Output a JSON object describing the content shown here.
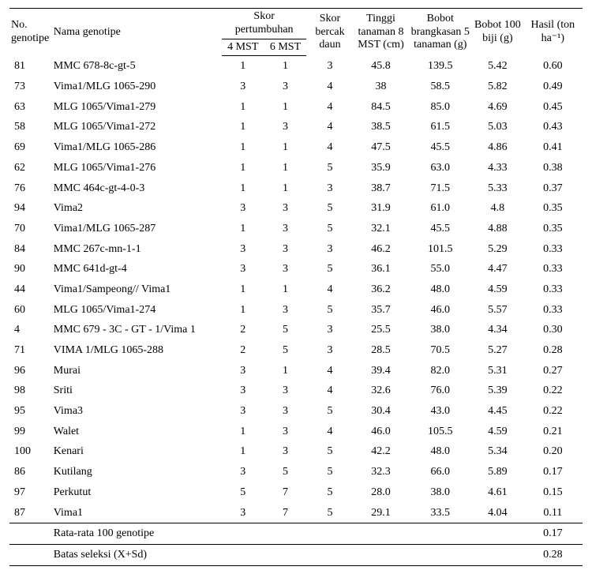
{
  "headers": {
    "no": "No. genotipe",
    "name": "Nama genotipe",
    "skor_group": "Skor pertumbuhan",
    "skor4": "4 MST",
    "skor6": "6 MST",
    "bercak": "Skor bercak daun",
    "tinggi": "Tinggi tanaman 8 MST (cm)",
    "brangkasan": "Bobot brangkasan 5 tanaman (g)",
    "biji": "Bobot 100 biji (g)",
    "hasil": "Hasil (ton ha⁻¹)"
  },
  "rows": [
    {
      "no": "81",
      "name": "MMC 678-8c-gt-5",
      "s4": "1",
      "s6": "1",
      "bd": "3",
      "tt": "45.8",
      "bb": "139.5",
      "b100": "5.42",
      "h": "0.60"
    },
    {
      "no": "73",
      "name": "Vima1/MLG 1065-290",
      "s4": "3",
      "s6": "3",
      "bd": "4",
      "tt": "38",
      "bb": "58.5",
      "b100": "5.82",
      "h": "0.49"
    },
    {
      "no": "63",
      "name": "MLG 1065/Vima1-279",
      "s4": "1",
      "s6": "1",
      "bd": "4",
      "tt": "84.5",
      "bb": "85.0",
      "b100": "4.69",
      "h": "0.45"
    },
    {
      "no": "58",
      "name": "MLG 1065/Vima1-272",
      "s4": "1",
      "s6": "3",
      "bd": "4",
      "tt": "38.5",
      "bb": "61.5",
      "b100": "5.03",
      "h": "0.43"
    },
    {
      "no": "69",
      "name": "Vima1/MLG 1065-286",
      "s4": "1",
      "s6": "1",
      "bd": "4",
      "tt": "47.5",
      "bb": "45.5",
      "b100": "4.86",
      "h": "0.41"
    },
    {
      "no": "62",
      "name": "MLG 1065/Vima1-276",
      "s4": "1",
      "s6": "1",
      "bd": "5",
      "tt": "35.9",
      "bb": "63.0",
      "b100": "4.33",
      "h": "0.38"
    },
    {
      "no": "76",
      "name": "MMC 464c-gt-4-0-3",
      "s4": "1",
      "s6": "1",
      "bd": "3",
      "tt": "38.7",
      "bb": "71.5",
      "b100": "5.33",
      "h": "0.37"
    },
    {
      "no": "94",
      "name": "Vima2",
      "s4": "3",
      "s6": "3",
      "bd": "5",
      "tt": "31.9",
      "bb": "61.0",
      "b100": "4.8",
      "h": "0.35"
    },
    {
      "no": "70",
      "name": "Vima1/MLG 1065-287",
      "s4": "1",
      "s6": "3",
      "bd": "5",
      "tt": "32.1",
      "bb": "45.5",
      "b100": "4.88",
      "h": "0.35"
    },
    {
      "no": "84",
      "name": "MMC 267c-mn-1-1",
      "s4": "3",
      "s6": "3",
      "bd": "3",
      "tt": "46.2",
      "bb": "101.5",
      "b100": "5.29",
      "h": "0.33"
    },
    {
      "no": "90",
      "name": "MMC 641d-gt-4",
      "s4": "3",
      "s6": "3",
      "bd": "5",
      "tt": "36.1",
      "bb": "55.0",
      "b100": "4.47",
      "h": "0.33"
    },
    {
      "no": "44",
      "name": "Vima1/Sampeong// Vima1",
      "s4": "1",
      "s6": "1",
      "bd": "4",
      "tt": "36.2",
      "bb": "48.0",
      "b100": "4.59",
      "h": "0.33"
    },
    {
      "no": "60",
      "name": "MLG 1065/Vima1-274",
      "s4": "1",
      "s6": "3",
      "bd": "5",
      "tt": "35.7",
      "bb": "46.0",
      "b100": "5.57",
      "h": "0.33"
    },
    {
      "no": "4",
      "name": "MMC 679 - 3C - GT - 1/Vima 1",
      "s4": "2",
      "s6": "5",
      "bd": "3",
      "tt": "25.5",
      "bb": "38.0",
      "b100": "4.34",
      "h": "0.30"
    },
    {
      "no": "71",
      "name": "VIMA 1/MLG 1065-288",
      "s4": "2",
      "s6": "5",
      "bd": "3",
      "tt": "28.5",
      "bb": "70.5",
      "b100": "5.27",
      "h": "0.28"
    },
    {
      "no": "96",
      "name": "Murai",
      "s4": "3",
      "s6": "1",
      "bd": "4",
      "tt": "39.4",
      "bb": "82.0",
      "b100": "5.31",
      "h": "0.27"
    },
    {
      "no": "98",
      "name": "Sriti",
      "s4": "3",
      "s6": "3",
      "bd": "4",
      "tt": "32.6",
      "bb": "76.0",
      "b100": "5.39",
      "h": "0.22"
    },
    {
      "no": "95",
      "name": "Vima3",
      "s4": "3",
      "s6": "3",
      "bd": "5",
      "tt": "30.4",
      "bb": "43.0",
      "b100": "4.45",
      "h": "0.22"
    },
    {
      "no": "99",
      "name": "Walet",
      "s4": "1",
      "s6": "3",
      "bd": "4",
      "tt": "46.0",
      "bb": "105.5",
      "b100": "4.59",
      "h": "0.21"
    },
    {
      "no": "100",
      "name": "Kenari",
      "s4": "1",
      "s6": "3",
      "bd": "5",
      "tt": "42.2",
      "bb": "48.0",
      "b100": "5.34",
      "h": "0.20"
    },
    {
      "no": "86",
      "name": "Kutilang",
      "s4": "3",
      "s6": "5",
      "bd": "5",
      "tt": "32.3",
      "bb": "66.0",
      "b100": "5.89",
      "h": "0.17"
    },
    {
      "no": "97",
      "name": "Perkutut",
      "s4": "5",
      "s6": "7",
      "bd": "5",
      "tt": "28.0",
      "bb": "38.0",
      "b100": "4.61",
      "h": "0.15"
    },
    {
      "no": "87",
      "name": "Vima1",
      "s4": "3",
      "s6": "7",
      "bd": "5",
      "tt": "29.1",
      "bb": "33.5",
      "b100": "4.04",
      "h": "0.11"
    }
  ],
  "summary": [
    {
      "label": "Rata-rata 100 genotipe",
      "value": "0.17"
    },
    {
      "label": "Batas seleksi  (X+Sd)",
      "value": "0.28"
    }
  ]
}
